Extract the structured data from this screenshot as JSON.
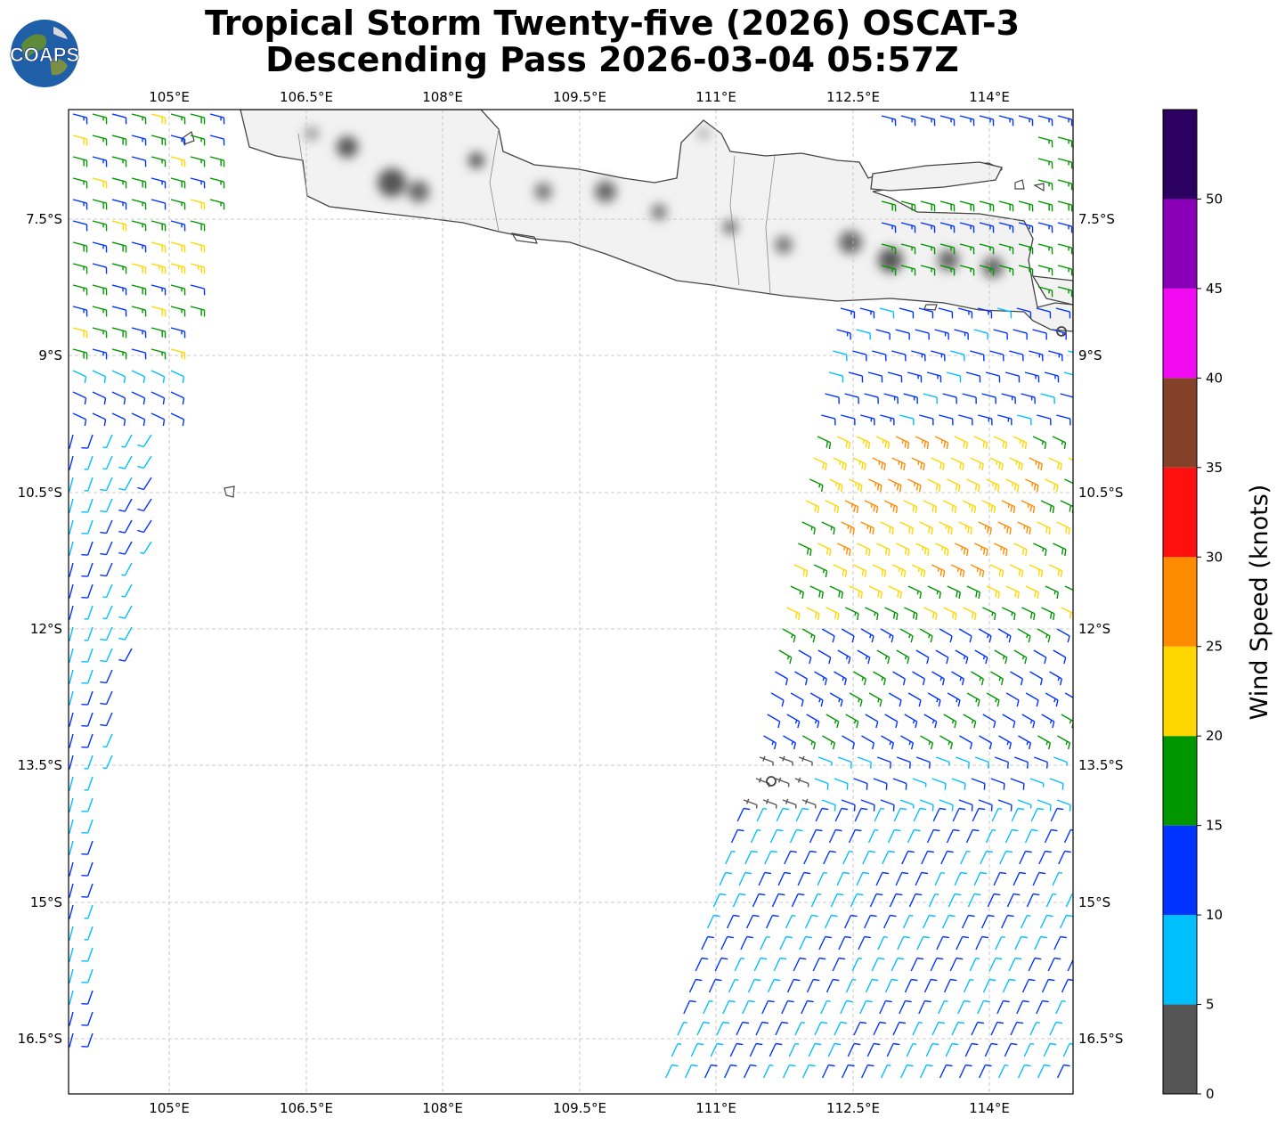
{
  "title": {
    "line1": "Tropical Storm Twenty-five (2026) OSCAT-3",
    "line2": "Descending Pass 2026-03-04 05:57Z"
  },
  "logo": {
    "text": "COAPS",
    "icon": "globe-logo-icon"
  },
  "map": {
    "lon_ticks": [
      "105°E",
      "106.5°E",
      "108°E",
      "109.5°E",
      "111°E",
      "112.5°E",
      "114°E"
    ],
    "lat_ticks": [
      "7.5°S",
      "9°S",
      "10.5°S",
      "12°S",
      "13.5°S",
      "15°S",
      "16.5°S"
    ],
    "lon_range": [
      103.9,
      114.9
    ],
    "lat_range": [
      6.3,
      17.1
    ]
  },
  "colorbar": {
    "label": "Wind Speed (knots)",
    "tick_labels": [
      "0",
      "5",
      "10",
      "15",
      "20",
      "25",
      "30",
      "35",
      "40",
      "45",
      "50"
    ],
    "bins": [
      {
        "min": 0,
        "max": 5,
        "color": "#555555"
      },
      {
        "min": 5,
        "max": 10,
        "color": "#00bfff"
      },
      {
        "min": 10,
        "max": 15,
        "color": "#0033ff"
      },
      {
        "min": 15,
        "max": 20,
        "color": "#009600"
      },
      {
        "min": 20,
        "max": 25,
        "color": "#ffd700"
      },
      {
        "min": 25,
        "max": 30,
        "color": "#ff8c00"
      },
      {
        "min": 30,
        "max": 35,
        "color": "#ff1010"
      },
      {
        "min": 35,
        "max": 40,
        "color": "#84412a"
      },
      {
        "min": 40,
        "max": 45,
        "color": "#f20af2"
      },
      {
        "min": 45,
        "max": 50,
        "color": "#8a00b8"
      },
      {
        "min": 50,
        "max": 55,
        "color": "#2c0060"
      }
    ]
  }
}
